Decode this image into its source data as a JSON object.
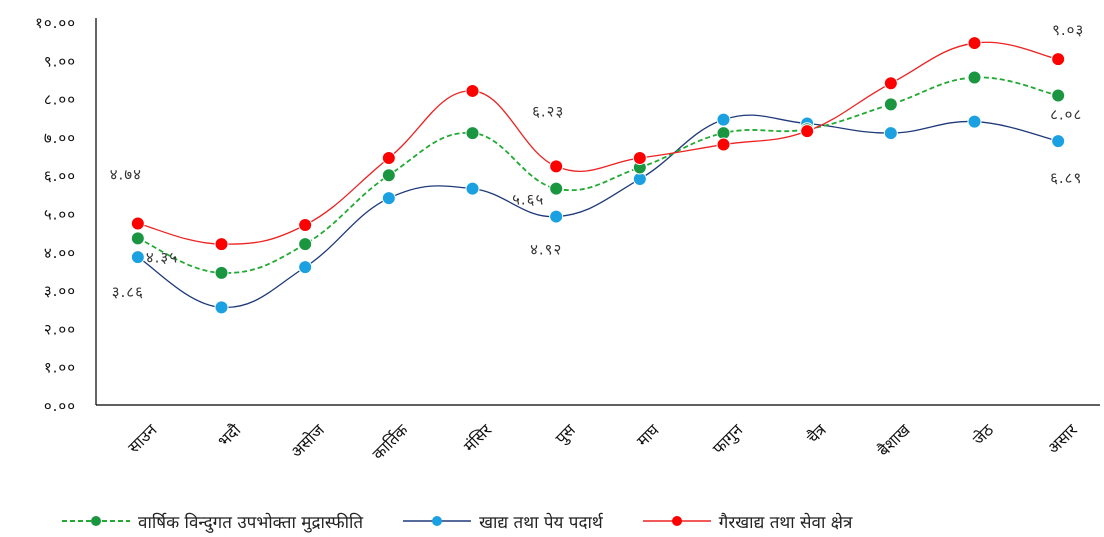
{
  "chart_data": {
    "type": "line",
    "categories": [
      "साउन",
      "भदौ",
      "असोज",
      "कार्तिक",
      "मंसिर",
      "पुस",
      "माघ",
      "फागुन",
      "चैत्र",
      "बैशाख",
      "जेठ",
      "असार"
    ],
    "y_ticks": [
      "०.००",
      "१.००",
      "२.००",
      "३.००",
      "४.००",
      "५.००",
      "६.००",
      "७.००",
      "८.००",
      "९.००",
      "१०.००"
    ],
    "ylim": [
      0,
      10
    ],
    "grid": false,
    "legend_position": "bottom",
    "series": [
      {
        "name": "वार्षिक विन्दुगत उपभोक्ता मुद्रास्फीति",
        "color": "#1a9641",
        "line_color": "#22aa33",
        "dashed": true,
        "values": [
          4.35,
          3.45,
          4.2,
          6.0,
          7.1,
          5.65,
          6.2,
          7.1,
          7.2,
          7.85,
          8.55,
          8.08
        ]
      },
      {
        "name": "खाद्य तथा पेय पदार्थ",
        "color": "#1ba1e2",
        "line_color": "#1f3a7a",
        "dashed": false,
        "values": [
          3.86,
          2.55,
          3.6,
          5.4,
          5.65,
          4.92,
          5.9,
          7.45,
          7.35,
          7.1,
          7.4,
          6.89
        ]
      },
      {
        "name": "गैरखाद्य तथा सेवा क्षेत्र",
        "color": "#ff0000",
        "line_color": "#ee2222",
        "dashed": false,
        "values": [
          4.74,
          4.2,
          4.7,
          6.45,
          8.2,
          6.23,
          6.45,
          6.8,
          7.15,
          8.4,
          9.45,
          9.03
        ]
      }
    ],
    "data_labels": [
      {
        "series": 2,
        "index": 0,
        "text": "४.७४"
      },
      {
        "series": 0,
        "index": 0,
        "text": "४.३५"
      },
      {
        "series": 1,
        "index": 0,
        "text": "३.८६"
      },
      {
        "series": 2,
        "index": 5,
        "text": "६.२३"
      },
      {
        "series": 0,
        "index": 5,
        "text": "५.६५"
      },
      {
        "series": 1,
        "index": 5,
        "text": "४.९२"
      },
      {
        "series": 2,
        "index": 11,
        "text": "९.०३"
      },
      {
        "series": 0,
        "index": 11,
        "text": "८.०८"
      },
      {
        "series": 1,
        "index": 11,
        "text": "६.८९"
      }
    ]
  }
}
